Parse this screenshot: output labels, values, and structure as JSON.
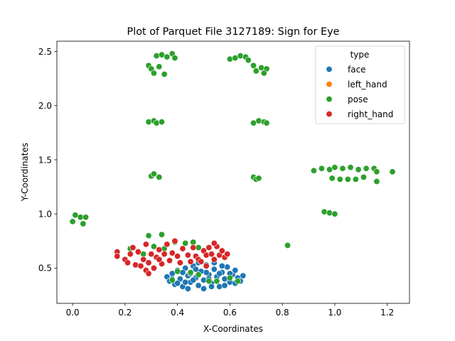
{
  "chart_data": {
    "type": "scatter",
    "title": "Plot of Parquet File 3127189: Sign for Eye",
    "xlabel": "X-Coordinates",
    "ylabel": "Y-Coordinates",
    "xlim": [
      -0.06,
      1.285
    ],
    "ylim": [
      0.175,
      2.595
    ],
    "xticks": [
      0.0,
      0.2,
      0.4,
      0.6,
      0.8,
      1.0,
      1.2
    ],
    "xtick_labels": [
      "0.0",
      "0.2",
      "0.4",
      "0.6",
      "0.8",
      "1.0",
      "1.2"
    ],
    "yticks": [
      0.5,
      1.0,
      1.5,
      2.0,
      2.5
    ],
    "ytick_labels": [
      "0.5",
      "1.0",
      "1.5",
      "2.0",
      "2.5"
    ],
    "grid": false,
    "legend": {
      "title": "type",
      "position": "top-right",
      "entries": [
        {
          "name": "face",
          "color": "#1f77b4"
        },
        {
          "name": "left_hand",
          "color": "#ff7f0e"
        },
        {
          "name": "pose",
          "color": "#2ca02c"
        },
        {
          "name": "right_hand",
          "color": "#d62728"
        }
      ]
    },
    "series": [
      {
        "name": "face",
        "color": "#1f77b4",
        "points": [
          [
            0.36,
            0.42
          ],
          [
            0.37,
            0.38
          ],
          [
            0.38,
            0.45
          ],
          [
            0.39,
            0.35
          ],
          [
            0.4,
            0.48
          ],
          [
            0.41,
            0.4
          ],
          [
            0.42,
            0.33
          ],
          [
            0.43,
            0.5
          ],
          [
            0.44,
            0.43
          ],
          [
            0.45,
            0.37
          ],
          [
            0.46,
            0.52
          ],
          [
            0.47,
            0.41
          ],
          [
            0.48,
            0.34
          ],
          [
            0.49,
            0.47
          ],
          [
            0.5,
            0.39
          ],
          [
            0.51,
            0.53
          ],
          [
            0.52,
            0.44
          ],
          [
            0.53,
            0.36
          ],
          [
            0.54,
            0.49
          ],
          [
            0.55,
            0.42
          ],
          [
            0.56,
            0.33
          ],
          [
            0.57,
            0.46
          ],
          [
            0.58,
            0.4
          ],
          [
            0.59,
            0.51
          ],
          [
            0.6,
            0.37
          ],
          [
            0.61,
            0.44
          ],
          [
            0.62,
            0.48
          ],
          [
            0.63,
            0.41
          ],
          [
            0.64,
            0.38
          ],
          [
            0.65,
            0.43
          ],
          [
            0.38,
            0.4
          ],
          [
            0.4,
            0.36
          ],
          [
            0.42,
            0.46
          ],
          [
            0.44,
            0.31
          ],
          [
            0.46,
            0.39
          ],
          [
            0.48,
            0.55
          ],
          [
            0.5,
            0.31
          ],
          [
            0.52,
            0.4
          ],
          [
            0.54,
            0.55
          ],
          [
            0.56,
            0.45
          ],
          [
            0.58,
            0.34
          ],
          [
            0.6,
            0.45
          ],
          [
            0.62,
            0.36
          ],
          [
            0.45,
            0.45
          ],
          [
            0.51,
            0.46
          ],
          [
            0.55,
            0.38
          ],
          [
            0.47,
            0.49
          ],
          [
            0.53,
            0.33
          ],
          [
            0.43,
            0.37
          ],
          [
            0.57,
            0.52
          ]
        ]
      },
      {
        "name": "left_hand",
        "color": "#ff7f0e",
        "points": []
      },
      {
        "name": "pose",
        "color": "#2ca02c",
        "points": [
          [
            0.32,
            2.46
          ],
          [
            0.34,
            2.47
          ],
          [
            0.36,
            2.45
          ],
          [
            0.38,
            2.48
          ],
          [
            0.39,
            2.44
          ],
          [
            0.29,
            2.37
          ],
          [
            0.3,
            2.34
          ],
          [
            0.31,
            2.3
          ],
          [
            0.33,
            2.36
          ],
          [
            0.35,
            2.29
          ],
          [
            0.6,
            2.43
          ],
          [
            0.62,
            2.44
          ],
          [
            0.64,
            2.46
          ],
          [
            0.66,
            2.45
          ],
          [
            0.67,
            2.42
          ],
          [
            0.69,
            2.37
          ],
          [
            0.7,
            2.32
          ],
          [
            0.72,
            2.35
          ],
          [
            0.74,
            2.34
          ],
          [
            0.73,
            2.3
          ],
          [
            0.29,
            1.85
          ],
          [
            0.31,
            1.86
          ],
          [
            0.32,
            1.84
          ],
          [
            0.34,
            1.85
          ],
          [
            0.69,
            1.84
          ],
          [
            0.71,
            1.86
          ],
          [
            0.73,
            1.85
          ],
          [
            0.74,
            1.84
          ],
          [
            0.3,
            1.35
          ],
          [
            0.31,
            1.37
          ],
          [
            0.33,
            1.34
          ],
          [
            0.69,
            1.34
          ],
          [
            0.7,
            1.32
          ],
          [
            0.71,
            1.33
          ],
          [
            0.92,
            1.4
          ],
          [
            0.95,
            1.42
          ],
          [
            0.98,
            1.41
          ],
          [
            1.0,
            1.43
          ],
          [
            1.03,
            1.42
          ],
          [
            1.06,
            1.43
          ],
          [
            1.09,
            1.41
          ],
          [
            1.12,
            1.42
          ],
          [
            0.99,
            1.33
          ],
          [
            1.02,
            1.32
          ],
          [
            1.05,
            1.32
          ],
          [
            1.08,
            1.32
          ],
          [
            1.11,
            1.34
          ],
          [
            1.15,
            1.42
          ],
          [
            1.16,
            1.39
          ],
          [
            1.16,
            1.3
          ],
          [
            1.22,
            1.39
          ],
          [
            0.96,
            1.02
          ],
          [
            0.98,
            1.01
          ],
          [
            1.0,
            1.0
          ],
          [
            0.0,
            0.93
          ],
          [
            0.01,
            0.99
          ],
          [
            0.03,
            0.97
          ],
          [
            0.04,
            0.91
          ],
          [
            0.05,
            0.97
          ],
          [
            0.82,
            0.71
          ],
          [
            0.29,
            0.8
          ],
          [
            0.34,
            0.81
          ],
          [
            0.39,
            0.74
          ],
          [
            0.43,
            0.73
          ],
          [
            0.46,
            0.74
          ],
          [
            0.48,
            0.69
          ],
          [
            0.22,
            0.68
          ],
          [
            0.27,
            0.63
          ],
          [
            0.31,
            0.7
          ],
          [
            0.35,
            0.68
          ],
          [
            0.4,
            0.47
          ],
          [
            0.48,
            0.44
          ],
          [
            0.52,
            0.38
          ],
          [
            0.55,
            0.38
          ],
          [
            0.6,
            0.41
          ],
          [
            0.63,
            0.38
          ],
          [
            0.38,
            0.39
          ],
          [
            0.45,
            0.46
          ]
        ]
      },
      {
        "name": "right_hand",
        "color": "#d62728",
        "points": [
          [
            0.17,
            0.65
          ],
          [
            0.17,
            0.61
          ],
          [
            0.2,
            0.58
          ],
          [
            0.21,
            0.55
          ],
          [
            0.22,
            0.63
          ],
          [
            0.24,
            0.53
          ],
          [
            0.23,
            0.69
          ],
          [
            0.25,
            0.65
          ],
          [
            0.26,
            0.52
          ],
          [
            0.27,
            0.58
          ],
          [
            0.28,
            0.72
          ],
          [
            0.28,
            0.48
          ],
          [
            0.29,
            0.55
          ],
          [
            0.3,
            0.63
          ],
          [
            0.31,
            0.5
          ],
          [
            0.32,
            0.6
          ],
          [
            0.33,
            0.67
          ],
          [
            0.34,
            0.54
          ],
          [
            0.35,
            0.63
          ],
          [
            0.36,
            0.72
          ],
          [
            0.37,
            0.57
          ],
          [
            0.38,
            0.64
          ],
          [
            0.39,
            0.75
          ],
          [
            0.4,
            0.61
          ],
          [
            0.41,
            0.55
          ],
          [
            0.42,
            0.68
          ],
          [
            0.44,
            0.62
          ],
          [
            0.46,
            0.69
          ],
          [
            0.47,
            0.61
          ],
          [
            0.48,
            0.58
          ],
          [
            0.5,
            0.66
          ],
          [
            0.51,
            0.62
          ],
          [
            0.52,
            0.69
          ],
          [
            0.53,
            0.63
          ],
          [
            0.54,
            0.58
          ],
          [
            0.55,
            0.7
          ],
          [
            0.56,
            0.62
          ],
          [
            0.57,
            0.66
          ],
          [
            0.58,
            0.6
          ],
          [
            0.59,
            0.63
          ],
          [
            0.54,
            0.73
          ],
          [
            0.51,
            0.52
          ],
          [
            0.45,
            0.56
          ],
          [
            0.49,
            0.56
          ],
          [
            0.33,
            0.58
          ],
          [
            0.29,
            0.45
          ]
        ]
      }
    ]
  }
}
